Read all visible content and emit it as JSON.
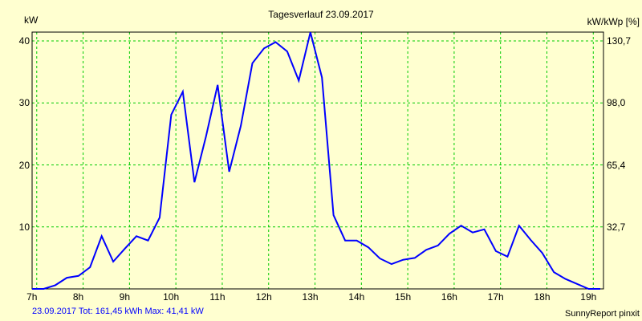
{
  "chart_data": {
    "type": "line",
    "title": "Tagesverlauf 23.09.2017",
    "ylabel": "kW",
    "ylabel_right": "kW/kWp [%]",
    "xlim": [
      6.9,
      19.22
    ],
    "ylim": [
      0,
      41.4
    ],
    "x_ticks": [
      7,
      8,
      9,
      10,
      11,
      12,
      13,
      14,
      15,
      16,
      17,
      18,
      19
    ],
    "x_tick_labels": [
      "7h",
      "8h",
      "9h",
      "10h",
      "11h",
      "12h",
      "13h",
      "14h",
      "15h",
      "16h",
      "17h",
      "18h",
      "19h"
    ],
    "y_ticks": [
      10,
      20,
      30,
      40
    ],
    "y_tick_labels": [
      "10",
      "20",
      "30",
      "40"
    ],
    "y_right_tick_labels": [
      "32,7",
      "65,4",
      "98,0",
      "130,7"
    ],
    "grid": true,
    "series": [
      {
        "name": "kW",
        "color": "#0000ff",
        "x_start": 6.9,
        "x_step": 0.25,
        "values": [
          0,
          0,
          0.6,
          1.8,
          2.1,
          3.5,
          8.5,
          4.4,
          6.5,
          8.5,
          7.8,
          11.5,
          28.1,
          31.8,
          17.2,
          24.6,
          32.9,
          18.9,
          26.3,
          36.4,
          38.8,
          39.8,
          38.3,
          33.6,
          41.4,
          34.1,
          11.9,
          7.8,
          7.8,
          6.7,
          4.9,
          4.0,
          4.7,
          5.0,
          6.3,
          7.0,
          8.9,
          10.2,
          9.1,
          9.6,
          6.1,
          5.2,
          10.2,
          7.9,
          5.8,
          2.7,
          1.6,
          0.8,
          0,
          0
        ]
      }
    ]
  },
  "footer": {
    "summary": "23.09.2017 Tot: 161,45 kWh Max: 41,41 kW",
    "brand": "SunnyReport pinxit"
  },
  "colors": {
    "grid": "#00cc00",
    "line": "#0000ff",
    "background": "#ffffd0"
  }
}
